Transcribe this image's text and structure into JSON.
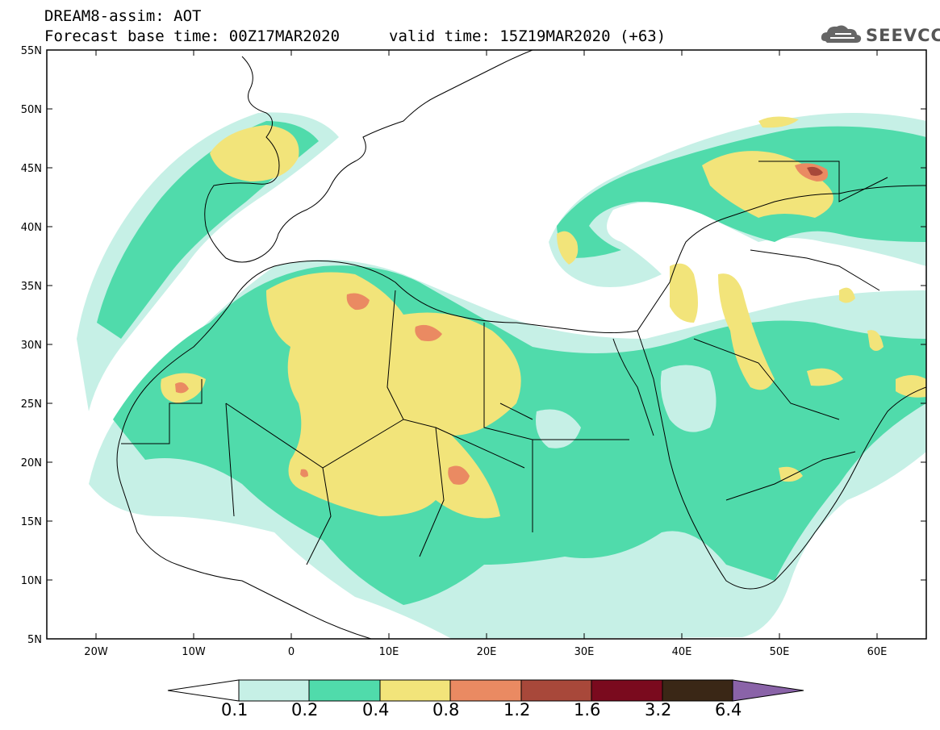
{
  "header": {
    "title": "DREAM8-assim: AOT",
    "base_time": "Forecast base time: 00Z17MAR2020",
    "valid_time": "valid time: 15Z19MAR2020 (+63)"
  },
  "logo": {
    "text": "SEEVCCC",
    "icon": "cloud-icon"
  },
  "map": {
    "lon_range": [
      -25,
      65
    ],
    "lat_range": [
      5,
      55
    ],
    "lon_ticks": [
      "20W",
      "10W",
      "0",
      "10E",
      "20E",
      "30E",
      "40E",
      "50E",
      "60E"
    ],
    "lat_ticks": [
      "55N",
      "50N",
      "45N",
      "40N",
      "35N",
      "30N",
      "25N",
      "20N",
      "15N",
      "10N",
      "5N"
    ]
  },
  "colorbar": {
    "labels": [
      "0.1",
      "0.2",
      "0.4",
      "0.8",
      "1.2",
      "1.6",
      "3.2",
      "6.4"
    ],
    "colors": [
      "#ffffff",
      "#c6f0e6",
      "#50dbab",
      "#f2e47a",
      "#ea8a62",
      "#a8483a",
      "#7a0a1e",
      "#3a2716",
      "#8a63a8"
    ]
  }
}
